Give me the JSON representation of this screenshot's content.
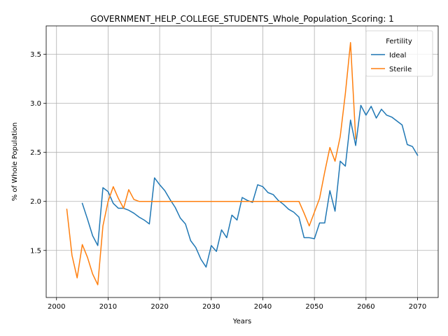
{
  "chart_data": {
    "type": "line",
    "title": "GOVERNMENT_HELP_COLLEGE_STUDENTS_Whole_Population_Scoring: 1",
    "xlabel": "Years",
    "ylabel": "% of Whole Population",
    "xlim": [
      1998,
      2074
    ],
    "ylim": [
      1.02,
      3.79
    ],
    "xticks": [
      2000,
      2010,
      2020,
      2030,
      2040,
      2050,
      2060,
      2070
    ],
    "yticks": [
      1.5,
      2.0,
      2.5,
      3.0,
      3.5
    ],
    "xtick_labels": [
      "2000",
      "2010",
      "2020",
      "2030",
      "2040",
      "2050",
      "2060",
      "2070"
    ],
    "ytick_labels": [
      "1.5",
      "2.0",
      "2.5",
      "3.0",
      "3.5"
    ],
    "grid": true,
    "legend": {
      "title": "Fertility",
      "position": "top-right"
    },
    "series": [
      {
        "name": "Ideal",
        "color": "#1f77b4",
        "x": [
          2005,
          2006,
          2007,
          2008,
          2009,
          2010,
          2011,
          2012,
          2013,
          2014,
          2015,
          2016,
          2017,
          2018,
          2019,
          2020,
          2021,
          2022,
          2023,
          2024,
          2025,
          2026,
          2027,
          2028,
          2029,
          2030,
          2031,
          2032,
          2033,
          2034,
          2035,
          2036,
          2037,
          2038,
          2039,
          2040,
          2041,
          2042,
          2043,
          2044,
          2045,
          2046,
          2047,
          2048,
          2049,
          2050,
          2051,
          2052,
          2053,
          2054,
          2055,
          2056,
          2057,
          2058,
          2059,
          2060,
          2061,
          2062,
          2063,
          2064,
          2065,
          2066,
          2067,
          2068,
          2069,
          2070
        ],
        "values": [
          1.98,
          1.82,
          1.65,
          1.55,
          2.14,
          2.1,
          1.98,
          1.93,
          1.93,
          1.91,
          1.88,
          1.84,
          1.81,
          1.77,
          2.24,
          2.17,
          2.11,
          2.02,
          1.94,
          1.83,
          1.77,
          1.6,
          1.53,
          1.41,
          1.33,
          1.55,
          1.49,
          1.71,
          1.63,
          1.86,
          1.81,
          2.04,
          2.01,
          1.99,
          2.17,
          2.15,
          2.09,
          2.07,
          2.01,
          1.97,
          1.92,
          1.89,
          1.84,
          1.63,
          1.63,
          1.62,
          1.78,
          1.78,
          2.11,
          1.9,
          2.41,
          2.36,
          2.83,
          2.57,
          2.98,
          2.88,
          2.97,
          2.85,
          2.94,
          2.88,
          2.86,
          2.82,
          2.78,
          2.58,
          2.56,
          2.47
        ]
      },
      {
        "name": "Sterile",
        "color": "#ff7f0e",
        "x": [
          2002,
          2003,
          2004,
          2005,
          2006,
          2007,
          2008,
          2009,
          2010,
          2011,
          2012,
          2013,
          2014,
          2015,
          2016,
          2017,
          2018,
          2019,
          2020,
          2021,
          2022,
          2023,
          2024,
          2025,
          2026,
          2027,
          2028,
          2029,
          2030,
          2031,
          2032,
          2033,
          2034,
          2035,
          2036,
          2037,
          2038,
          2039,
          2040,
          2041,
          2042,
          2043,
          2044,
          2045,
          2046,
          2047,
          2048,
          2049,
          2050,
          2051,
          2052,
          2053,
          2054,
          2055,
          2056,
          2057,
          2058
        ],
        "values": [
          1.92,
          1.45,
          1.22,
          1.56,
          1.43,
          1.26,
          1.15,
          1.75,
          2.0,
          2.15,
          2.03,
          1.93,
          2.12,
          2.02,
          2.0,
          2.0,
          2.0,
          2.0,
          2.0,
          2.0,
          2.0,
          2.0,
          2.0,
          2.0,
          2.0,
          2.0,
          2.0,
          2.0,
          2.0,
          2.0,
          2.0,
          2.0,
          2.0,
          2.0,
          2.0,
          2.0,
          2.0,
          2.0,
          2.0,
          2.0,
          2.0,
          2.0,
          2.0,
          2.0,
          2.0,
          2.0,
          1.88,
          1.75,
          1.89,
          2.03,
          2.3,
          2.55,
          2.41,
          2.66,
          3.1,
          3.62,
          2.64
        ]
      }
    ]
  }
}
